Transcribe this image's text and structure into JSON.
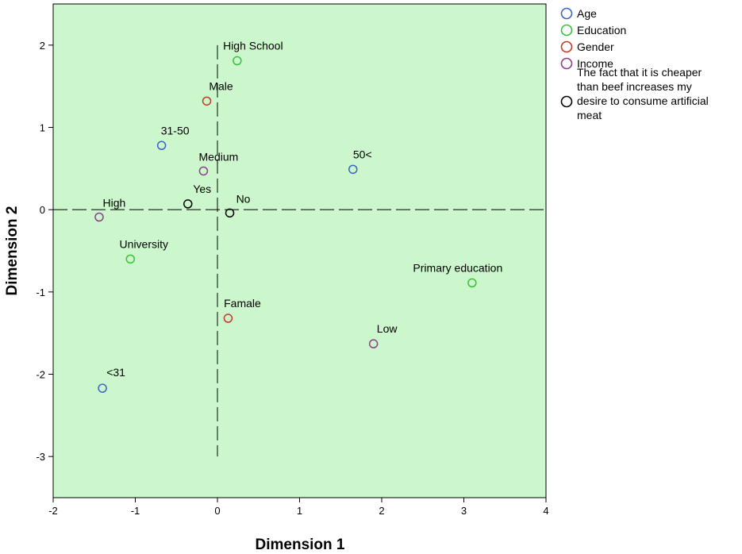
{
  "chart_data": {
    "type": "scatter",
    "title": "",
    "xlabel": "Dimension 1",
    "ylabel": "Dimension 2",
    "xlim": [
      -2,
      4
    ],
    "ylim": [
      -3.5,
      2.5
    ],
    "xticks": [
      "-2",
      "-1",
      "0",
      "1",
      "2",
      "3",
      "4"
    ],
    "yticks": [
      "-3",
      "-2",
      "-1",
      "0",
      "1",
      "2"
    ],
    "grid": false,
    "reference_lines": "dashed lines at x = 0 and y = 0",
    "background_color": "#ccf7cc",
    "legend_position": "right",
    "series": [
      {
        "name": "Age",
        "color": "#3a64c8",
        "points": [
          {
            "label": "31-50",
            "x": -0.68,
            "y": 0.78
          },
          {
            "label": "50<",
            "x": 1.65,
            "y": 0.49
          },
          {
            "label": "<31",
            "x": -1.4,
            "y": -2.17
          }
        ]
      },
      {
        "name": "Education",
        "color": "#3cbf3c",
        "points": [
          {
            "label": "High School",
            "x": 0.24,
            "y": 1.81
          },
          {
            "label": "University",
            "x": -1.06,
            "y": -0.6
          },
          {
            "label": "Primary education",
            "x": 3.1,
            "y": -0.89
          }
        ]
      },
      {
        "name": "Gender",
        "color": "#c0392b",
        "points": [
          {
            "label": "Male",
            "x": -0.13,
            "y": 1.32
          },
          {
            "label": "Famale",
            "x": 0.13,
            "y": -1.32
          }
        ]
      },
      {
        "name": "Income",
        "color": "#8b3f8b",
        "points": [
          {
            "label": "Medium",
            "x": -0.17,
            "y": 0.47
          },
          {
            "label": "High",
            "x": -1.44,
            "y": -0.09
          },
          {
            "label": "Low",
            "x": 1.9,
            "y": -1.63
          }
        ]
      },
      {
        "name": "The fact that it is cheaper than beef increases my desire to consume artificial meat",
        "name_lines": [
          "The fact that it is cheaper",
          "than beef increases my",
          "desire to consume artificial",
          "meat"
        ],
        "color": "#000000",
        "points": [
          {
            "label": "Yes",
            "x": -0.36,
            "y": 0.07
          },
          {
            "label": "No",
            "x": 0.15,
            "y": -0.04
          }
        ]
      }
    ]
  }
}
